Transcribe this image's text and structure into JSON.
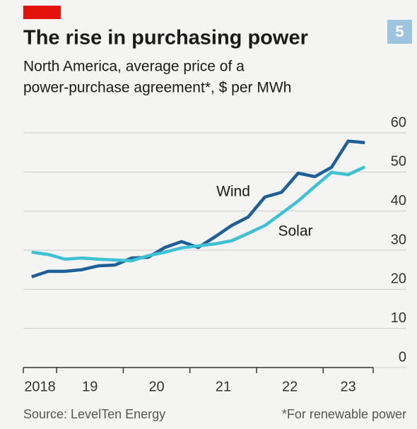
{
  "chart_data": {
    "type": "line",
    "title": "The rise in purchasing power",
    "subtitle": [
      "North America, average price of a",
      "power-purchase agreement*, $ per MWh"
    ],
    "chart_number": "5",
    "source": "Source: LevelTen Energy",
    "note": "*For renewable power",
    "x": [
      2018.625,
      2018.875,
      2019.125,
      2019.375,
      2019.625,
      2019.875,
      2020.125,
      2020.375,
      2020.625,
      2020.875,
      2021.125,
      2021.375,
      2021.625,
      2021.875,
      2022.125,
      2022.375,
      2022.625,
      2022.875,
      2023.125,
      2023.375,
      2023.625
    ],
    "series": [
      {
        "name": "Wind",
        "color": "#1d5f96",
        "values": [
          23.2,
          24.6,
          24.6,
          25,
          26,
          26.2,
          28,
          28.2,
          30.7,
          32.2,
          30.7,
          33.4,
          36.3,
          38.5,
          43.6,
          44.8,
          49.7,
          48.8,
          51.2,
          57.9,
          57.5
        ]
      },
      {
        "name": "Solar",
        "color": "#3fc0d4",
        "values": [
          29.5,
          28.9,
          27.7,
          28,
          27.7,
          27.5,
          27.3,
          28.6,
          29.5,
          30.6,
          31.1,
          31.6,
          32.4,
          34.3,
          36.3,
          39.4,
          42.6,
          46.3,
          49.9,
          49.3,
          51.3
        ]
      }
    ],
    "xlim": [
      2018.5,
      2023.75
    ],
    "xticks": [
      {
        "value": 2018,
        "label": "2018"
      },
      {
        "value": 2019,
        "label": "19"
      },
      {
        "value": 2020,
        "label": "20"
      },
      {
        "value": 2021,
        "label": "21"
      },
      {
        "value": 2022,
        "label": "22"
      },
      {
        "value": 2023,
        "label": "23"
      }
    ],
    "ylim": [
      0,
      60
    ],
    "yticks": [
      0,
      10,
      20,
      30,
      40,
      50,
      60
    ],
    "grid": true
  }
}
